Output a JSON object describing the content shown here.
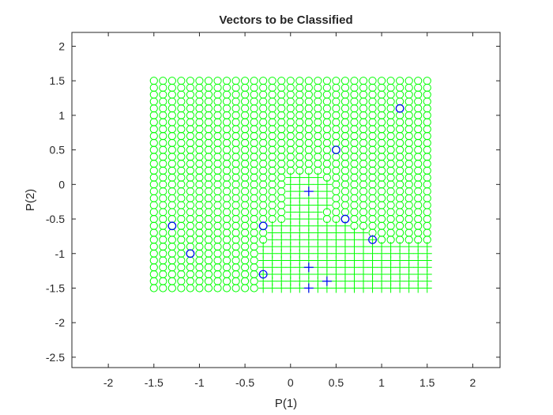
{
  "chart_data": {
    "type": "scatter",
    "title": "Vectors to be Classified",
    "xlabel": "P(1)",
    "ylabel": "P(2)",
    "xlim": [
      -2.4,
      2.3
    ],
    "ylim": [
      -2.65,
      2.2
    ],
    "xticks": [
      -2,
      -1.5,
      -1,
      -0.5,
      0,
      0.5,
      1,
      1.5,
      2
    ],
    "xtick_labels": [
      "-2",
      "-1.5",
      "-1",
      "-0.5",
      "0",
      "0.5",
      "1",
      "1.5",
      "2"
    ],
    "yticks": [
      2,
      1.5,
      1,
      0.5,
      0,
      -0.5,
      -1,
      -1.5,
      -2,
      -2.5
    ],
    "ytick_labels": [
      "2",
      "1.5",
      "1",
      "0.5",
      "0",
      "-0.5",
      "-1",
      "-1.5",
      "-2",
      "-2.5"
    ],
    "grid": false,
    "colors": {
      "grid_class_markers": "#00ff00",
      "input_vectors": "#0000ff",
      "axes": "#262626"
    },
    "grid_classification": {
      "x_range": [
        -1.5,
        1.5
      ],
      "y_range": [
        -1.5,
        1.5
      ],
      "step": 0.1,
      "class_0_marker": "circle",
      "class_1_marker": "plus"
    },
    "series": [
      {
        "marker": "circle",
        "color": "#0000ff",
        "points": [
          [
            -1.3,
            -0.6
          ],
          [
            -1.1,
            -1.0
          ],
          [
            -0.3,
            -0.6
          ],
          [
            -0.3,
            -1.3
          ],
          [
            0.5,
            0.5
          ],
          [
            0.6,
            -0.5
          ],
          [
            0.9,
            -0.8
          ],
          [
            1.2,
            1.1
          ]
        ]
      },
      {
        "marker": "plus",
        "color": "#0000ff",
        "points": [
          [
            0.2,
            -0.1
          ],
          [
            0.2,
            -1.2
          ],
          [
            0.2,
            -1.5
          ],
          [
            0.4,
            -1.4
          ]
        ]
      }
    ]
  }
}
